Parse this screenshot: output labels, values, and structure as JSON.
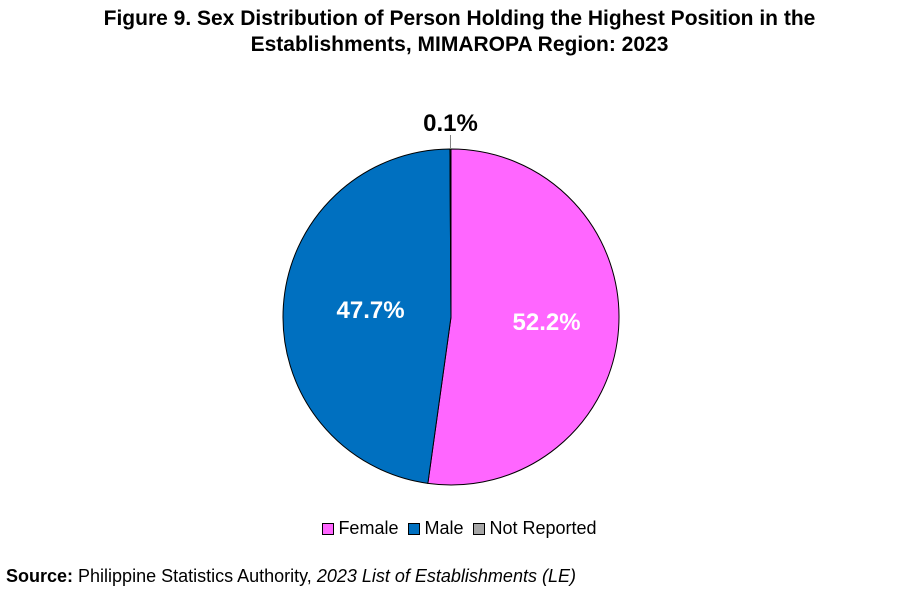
{
  "title": {
    "line1": "Figure 9. Sex Distribution of Person Holding the Highest Position in the",
    "line2": "Establishments, MIMAROPA Region: 2023"
  },
  "chart_data": {
    "type": "pie",
    "slices": [
      {
        "name": "Female",
        "value": 52.2,
        "label": "52.2%",
        "color": "#FF66FF"
      },
      {
        "name": "Male",
        "value": 47.7,
        "label": "47.7%",
        "color": "#0070C0"
      },
      {
        "name": "Not Reported",
        "value": 0.1,
        "label": "0.1%",
        "color": "#A6A6A6"
      }
    ],
    "start": "12 o'clock",
    "direction": "clockwise",
    "legend_position": "bottom"
  },
  "source": {
    "label": "Source:",
    "text": " Philippine Statistics Authority, ",
    "title": "2023 List of Establishments (LE)"
  }
}
